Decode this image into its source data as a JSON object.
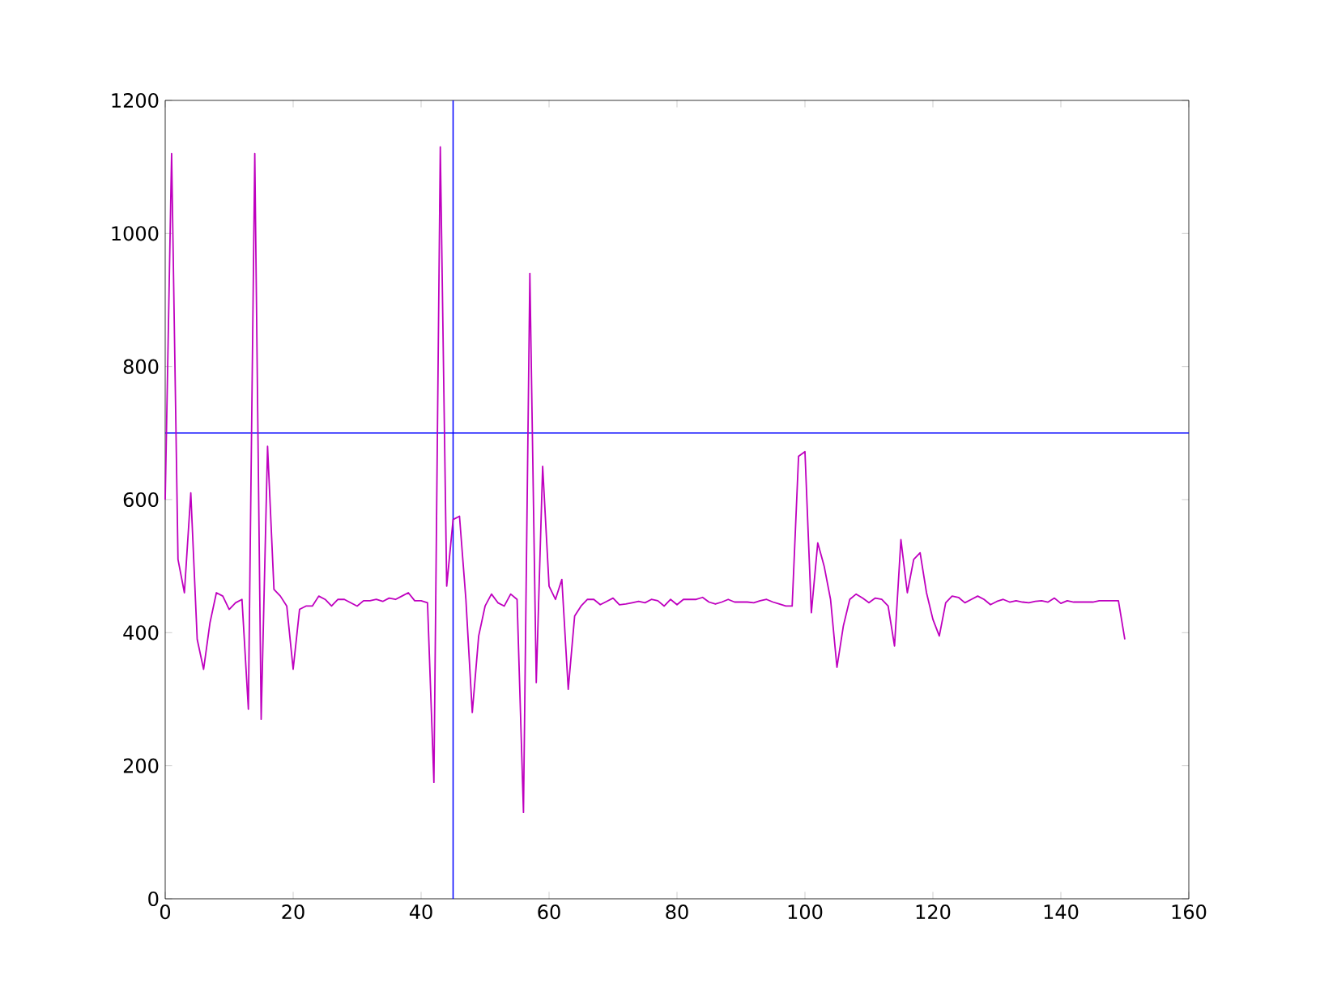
{
  "chart_data": {
    "type": "line",
    "x": [
      0,
      1,
      2,
      3,
      4,
      5,
      6,
      7,
      8,
      9,
      10,
      11,
      12,
      13,
      14,
      15,
      16,
      17,
      18,
      19,
      20,
      21,
      22,
      23,
      24,
      25,
      26,
      27,
      28,
      29,
      30,
      31,
      32,
      33,
      34,
      35,
      36,
      37,
      38,
      39,
      40,
      41,
      42,
      43,
      44,
      45,
      46,
      47,
      48,
      49,
      50,
      51,
      52,
      53,
      54,
      55,
      56,
      57,
      58,
      59,
      60,
      61,
      62,
      63,
      64,
      65,
      66,
      67,
      68,
      69,
      70,
      71,
      72,
      73,
      74,
      75,
      76,
      77,
      78,
      79,
      80,
      81,
      82,
      83,
      84,
      85,
      86,
      87,
      88,
      89,
      90,
      91,
      92,
      93,
      94,
      95,
      96,
      97,
      98,
      99,
      100,
      101,
      102,
      103,
      104,
      105,
      106,
      107,
      108,
      109,
      110,
      111,
      112,
      113,
      114,
      115,
      116,
      117,
      118,
      119,
      120,
      121,
      122,
      123,
      124,
      125,
      126,
      127,
      128,
      129,
      130,
      131,
      132,
      133,
      134,
      135,
      136,
      137,
      138,
      139,
      140,
      141,
      142,
      143,
      144,
      145,
      146,
      147,
      148,
      149,
      150
    ],
    "series": [
      {
        "color": "#bf00bf",
        "values": [
          600,
          1120,
          510,
          460,
          610,
          390,
          345,
          415,
          460,
          455,
          435,
          445,
          450,
          285,
          1120,
          270,
          680,
          465,
          455,
          440,
          345,
          435,
          440,
          440,
          455,
          450,
          440,
          450,
          450,
          445,
          440,
          448,
          448,
          450,
          447,
          452,
          450,
          455,
          460,
          448,
          448,
          445,
          175,
          1130,
          470,
          570,
          575,
          450,
          280,
          395,
          440,
          458,
          445,
          440,
          458,
          450,
          130,
          940,
          325,
          650,
          470,
          450,
          480,
          315,
          425,
          440,
          450,
          450,
          442,
          447,
          452,
          442,
          443,
          445,
          447,
          445,
          450,
          448,
          440,
          450,
          442,
          450,
          450,
          450,
          453,
          446,
          443,
          446,
          450,
          446,
          446,
          446,
          445,
          448,
          450,
          446,
          443,
          440,
          440,
          665,
          672,
          430,
          535,
          500,
          450,
          348,
          410,
          450,
          458,
          452,
          445,
          452,
          450,
          440,
          380,
          540,
          460,
          510,
          520,
          460,
          420,
          395,
          445,
          455,
          453,
          445,
          450,
          455,
          450,
          442,
          447,
          450,
          446,
          448,
          446,
          445,
          447,
          448,
          446,
          452,
          444,
          448,
          446,
          446,
          446,
          446,
          448,
          448,
          448,
          448,
          390
        ]
      }
    ],
    "xlim": [
      0,
      160
    ],
    "xticks": [
      0,
      20,
      40,
      60,
      80,
      100,
      120,
      140,
      160
    ],
    "ylim": [
      0,
      1200
    ],
    "yticks": [
      0,
      200,
      400,
      600,
      800,
      1000,
      1200
    ],
    "ref_lines": [
      {
        "axis": "y",
        "value": 700,
        "color": "#0000ff"
      },
      {
        "axis": "x",
        "value": 45,
        "color": "#0000ff"
      }
    ],
    "grid": false,
    "marker": "none",
    "line_style": "solid"
  }
}
